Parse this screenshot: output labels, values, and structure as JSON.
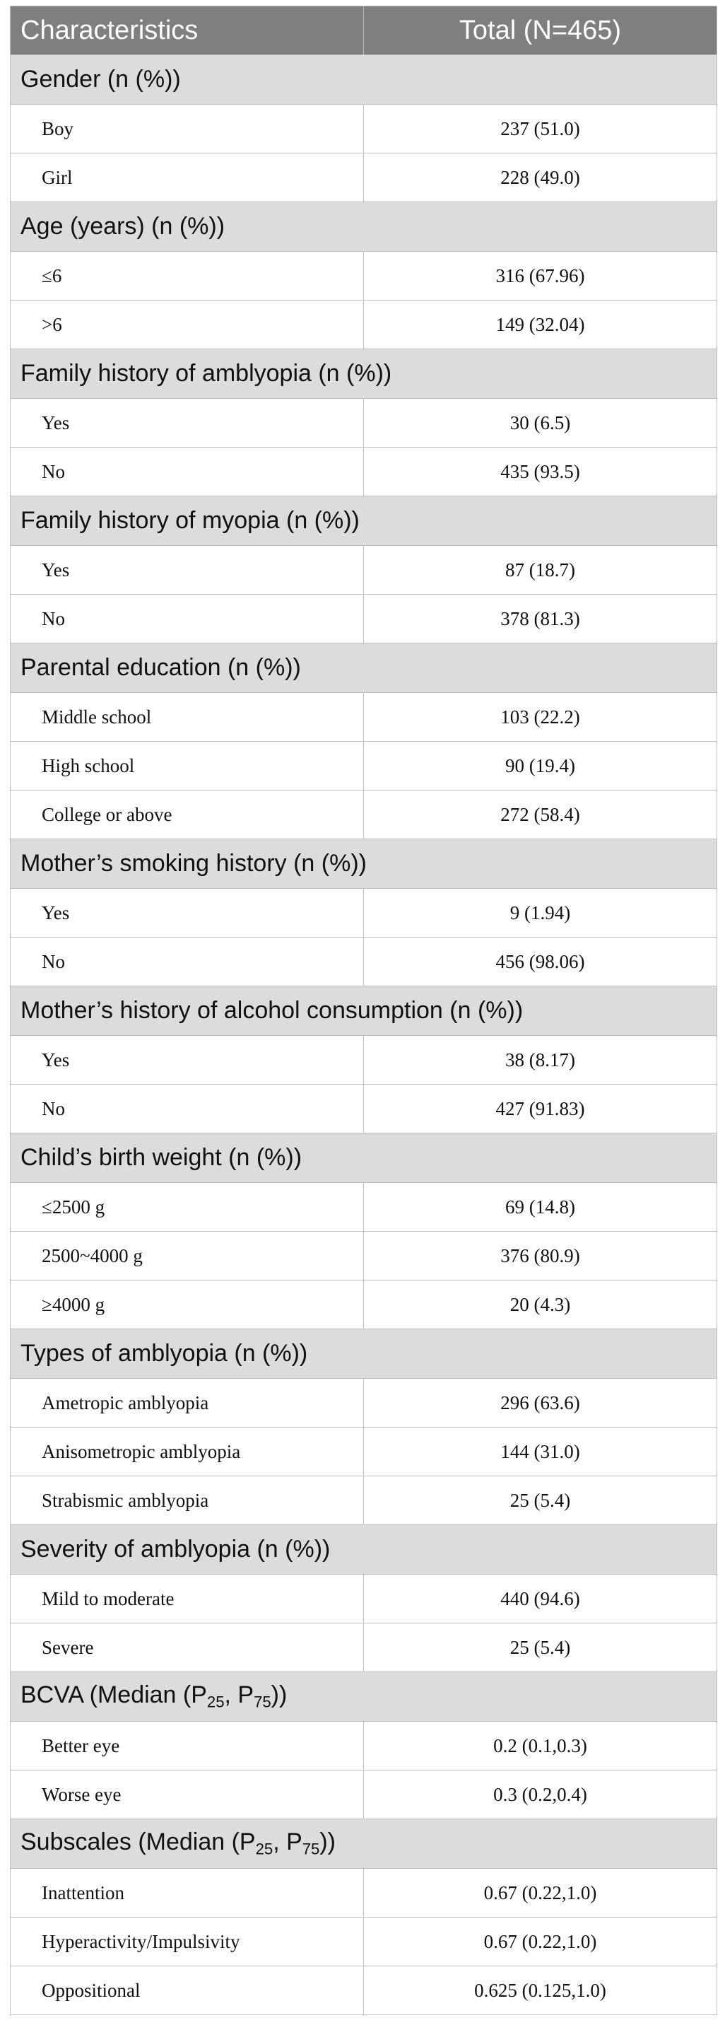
{
  "header": {
    "col1": "Characteristics",
    "col2": "Total (N=465)"
  },
  "sections": [
    {
      "title": "Gender (n (%))",
      "rows": [
        {
          "label": "Boy",
          "value": "237 (51.0)"
        },
        {
          "label": "Girl",
          "value": "228 (49.0)"
        }
      ]
    },
    {
      "title": "Age (years) (n (%))",
      "rows": [
        {
          "label": "≤6",
          "value": "316 (67.96)"
        },
        {
          "label": ">6",
          "value": "149 (32.04)"
        }
      ]
    },
    {
      "title": "Family history of amblyopia (n (%))",
      "rows": [
        {
          "label": "Yes",
          "value": "30 (6.5)"
        },
        {
          "label": "No",
          "value": "435 (93.5)"
        }
      ]
    },
    {
      "title": "Family history of myopia (n (%))",
      "rows": [
        {
          "label": "Yes",
          "value": "87 (18.7)"
        },
        {
          "label": "No",
          "value": "378 (81.3)"
        }
      ]
    },
    {
      "title": "Parental education (n (%))",
      "rows": [
        {
          "label": "Middle school",
          "value": "103 (22.2)"
        },
        {
          "label": "High school",
          "value": "90 (19.4)"
        },
        {
          "label": "College or above",
          "value": "272 (58.4)"
        }
      ]
    },
    {
      "title": "Mother’s smoking history (n (%))",
      "rows": [
        {
          "label": "Yes",
          "value": "9 (1.94)"
        },
        {
          "label": "No",
          "value": "456 (98.06)"
        }
      ]
    },
    {
      "title": "Mother’s history of alcohol consumption (n (%))",
      "rows": [
        {
          "label": "Yes",
          "value": "38 (8.17)"
        },
        {
          "label": "No",
          "value": "427 (91.83)"
        }
      ]
    },
    {
      "title": "Child’s birth weight (n (%))",
      "rows": [
        {
          "label": "≤2500 g",
          "value": "69 (14.8)"
        },
        {
          "label": "2500~4000 g",
          "value": "376 (80.9)"
        },
        {
          "label": "≥4000 g",
          "value": "20 (4.3)"
        }
      ]
    },
    {
      "title": "Types of amblyopia (n (%))",
      "rows": [
        {
          "label": "Ametropic amblyopia",
          "value": "296 (63.6)"
        },
        {
          "label": "Anisometropic amblyopia",
          "value": "144 (31.0)"
        },
        {
          "label": "Strabismic amblyopia",
          "value": "25 (5.4)"
        }
      ]
    },
    {
      "title": "Severity of amblyopia (n (%))",
      "rows": [
        {
          "label": "Mild to moderate",
          "value": "440 (94.6)"
        },
        {
          "label": "Severe",
          "value": "25 (5.4)"
        }
      ]
    },
    {
      "title_parts": [
        "BCVA (Median (P",
        "25",
        ", P",
        "75",
        "))"
      ],
      "rows": [
        {
          "label": "Better eye",
          "value": "0.2 (0.1,0.3)"
        },
        {
          "label": "Worse eye",
          "value": "0.3 (0.2,0.4)"
        }
      ]
    },
    {
      "title_parts": [
        "Subscales (Median (P",
        "25",
        ", P",
        "75",
        "))"
      ],
      "rows": [
        {
          "label": "Inattention",
          "value": "0.67 (0.22,1.0)"
        },
        {
          "label": "Hyperactivity/Impulsivity",
          "value": "0.67 (0.22,1.0)"
        },
        {
          "label": "Oppositional",
          "value": "0.625 (0.125,1.0)"
        }
      ]
    }
  ]
}
